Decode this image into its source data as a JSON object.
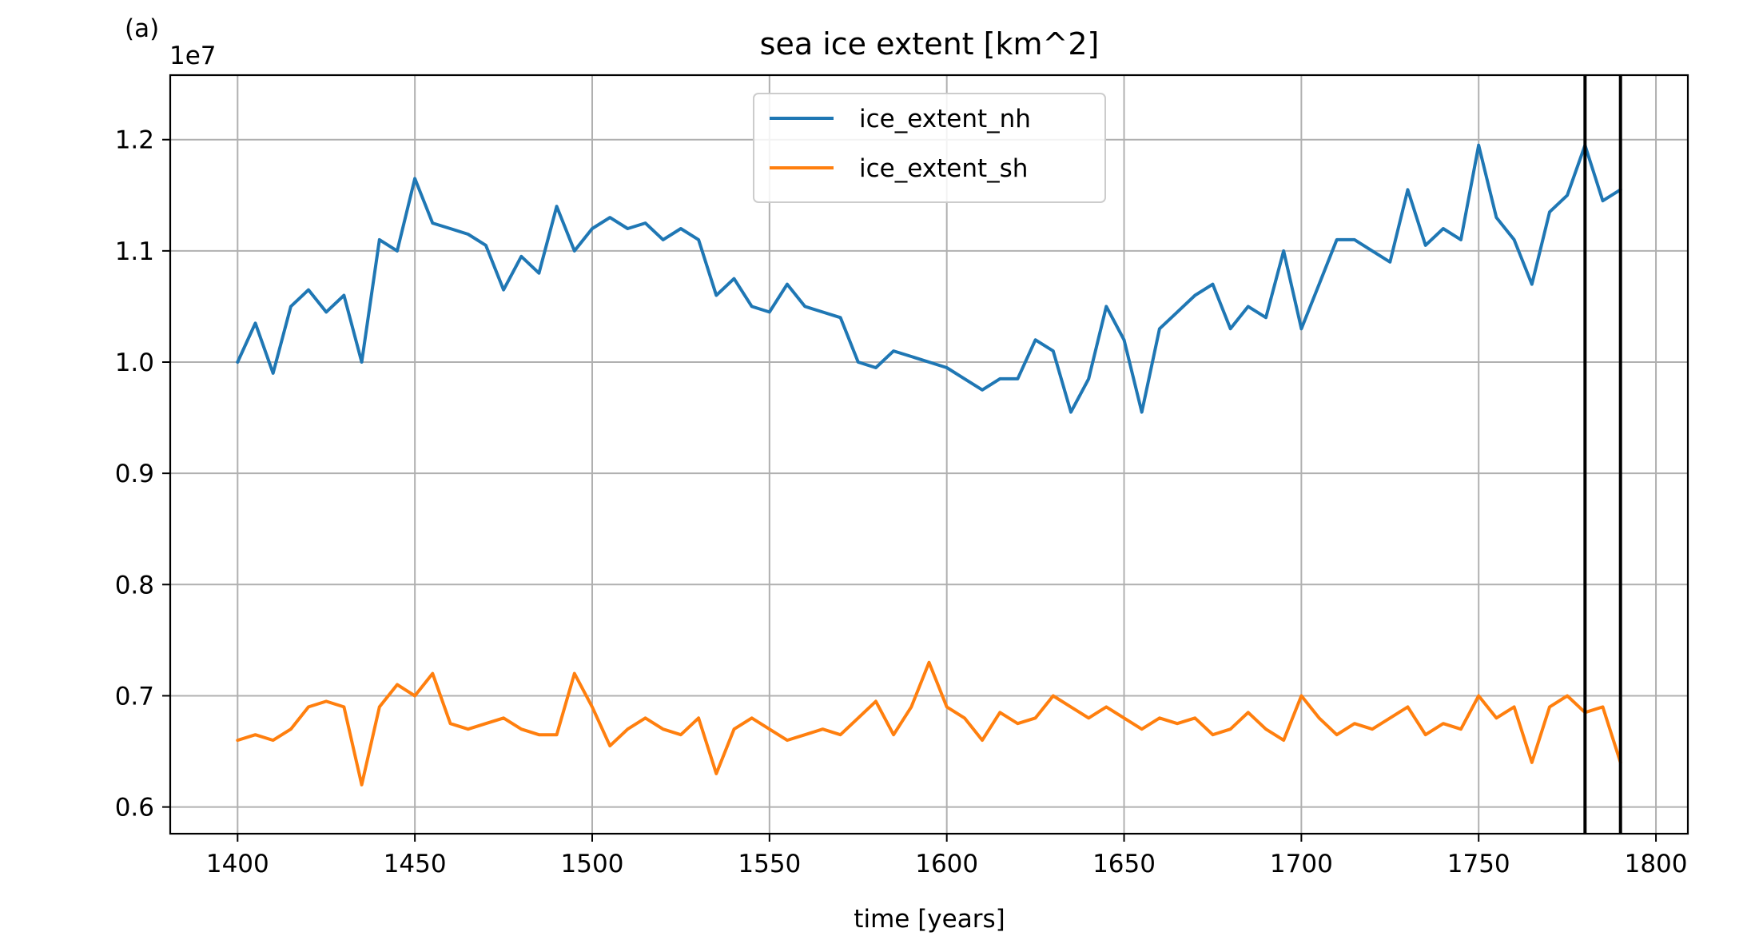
{
  "chart_data": {
    "type": "line",
    "panel_label": "(a)",
    "title": "sea ice extent [km^2]",
    "xlabel": "time [years]",
    "ylabel": "",
    "y_offset_label": "1e7",
    "xlim": [
      1381,
      1809
    ],
    "ylim": [
      0.576,
      1.258
    ],
    "x_ticks": [
      1400,
      1450,
      1500,
      1550,
      1600,
      1650,
      1700,
      1750,
      1800
    ],
    "y_ticks": [
      0.6,
      0.7,
      0.8,
      0.9,
      1.0,
      1.1,
      1.2
    ],
    "x_tick_labels": [
      "1400",
      "1450",
      "1500",
      "1550",
      "1600",
      "1650",
      "1700",
      "1750",
      "1800"
    ],
    "y_tick_labels": [
      "0.6",
      "0.7",
      "0.8",
      "0.9",
      "1.0",
      "1.1",
      "1.2"
    ],
    "grid": true,
    "legend_position": "top-center",
    "vertical_lines": [
      1780,
      1790
    ],
    "vertical_line_color": "#000000",
    "series": [
      {
        "name": "ice_extent_nh",
        "color": "#1f77b4",
        "x": [
          1400,
          1405,
          1410,
          1415,
          1420,
          1425,
          1430,
          1435,
          1440,
          1445,
          1450,
          1455,
          1460,
          1465,
          1470,
          1475,
          1480,
          1485,
          1490,
          1495,
          1500,
          1505,
          1510,
          1515,
          1520,
          1525,
          1530,
          1535,
          1540,
          1545,
          1550,
          1555,
          1560,
          1565,
          1570,
          1575,
          1580,
          1585,
          1590,
          1595,
          1600,
          1605,
          1610,
          1615,
          1620,
          1625,
          1630,
          1635,
          1640,
          1645,
          1650,
          1655,
          1660,
          1665,
          1670,
          1675,
          1680,
          1685,
          1690,
          1695,
          1700,
          1705,
          1710,
          1715,
          1720,
          1725,
          1730,
          1735,
          1740,
          1745,
          1750,
          1755,
          1760,
          1765,
          1770,
          1775,
          1780,
          1785,
          1790
        ],
        "y": [
          1.0,
          1.035,
          0.99,
          1.05,
          1.065,
          1.045,
          1.06,
          1.0,
          1.11,
          1.1,
          1.165,
          1.125,
          1.12,
          1.115,
          1.105,
          1.065,
          1.095,
          1.08,
          1.14,
          1.1,
          1.12,
          1.13,
          1.12,
          1.125,
          1.11,
          1.12,
          1.11,
          1.06,
          1.075,
          1.05,
          1.045,
          1.07,
          1.05,
          1.045,
          1.04,
          1.0,
          0.995,
          1.01,
          1.005,
          1.0,
          0.995,
          0.985,
          0.975,
          0.985,
          0.985,
          1.02,
          1.01,
          0.955,
          0.985,
          1.05,
          1.02,
          0.955,
          1.03,
          1.045,
          1.06,
          1.07,
          1.03,
          1.05,
          1.04,
          1.1,
          1.03,
          1.07,
          1.11,
          1.11,
          1.1,
          1.09,
          1.155,
          1.105,
          1.12,
          1.11,
          1.195,
          1.13,
          1.11,
          1.07,
          1.135,
          1.15,
          1.195,
          1.145,
          1.155
        ]
      },
      {
        "name": "ice_extent_sh",
        "color": "#ff7f0e",
        "x": [
          1400,
          1405,
          1410,
          1415,
          1420,
          1425,
          1430,
          1435,
          1440,
          1445,
          1450,
          1455,
          1460,
          1465,
          1470,
          1475,
          1480,
          1485,
          1490,
          1495,
          1500,
          1505,
          1510,
          1515,
          1520,
          1525,
          1530,
          1535,
          1540,
          1545,
          1550,
          1555,
          1560,
          1565,
          1570,
          1575,
          1580,
          1585,
          1590,
          1595,
          1600,
          1605,
          1610,
          1615,
          1620,
          1625,
          1630,
          1635,
          1640,
          1645,
          1650,
          1655,
          1660,
          1665,
          1670,
          1675,
          1680,
          1685,
          1690,
          1695,
          1700,
          1705,
          1710,
          1715,
          1720,
          1725,
          1730,
          1735,
          1740,
          1745,
          1750,
          1755,
          1760,
          1765,
          1770,
          1775,
          1780,
          1785,
          1790
        ],
        "y": [
          0.66,
          0.665,
          0.66,
          0.67,
          0.69,
          0.695,
          0.69,
          0.62,
          0.69,
          0.71,
          0.7,
          0.72,
          0.675,
          0.67,
          0.675,
          0.68,
          0.67,
          0.665,
          0.665,
          0.72,
          0.69,
          0.655,
          0.67,
          0.68,
          0.67,
          0.665,
          0.68,
          0.63,
          0.67,
          0.68,
          0.67,
          0.66,
          0.665,
          0.67,
          0.665,
          0.68,
          0.695,
          0.665,
          0.69,
          0.73,
          0.69,
          0.68,
          0.66,
          0.685,
          0.675,
          0.68,
          0.7,
          0.69,
          0.68,
          0.69,
          0.68,
          0.67,
          0.68,
          0.675,
          0.68,
          0.665,
          0.67,
          0.685,
          0.67,
          0.66,
          0.7,
          0.68,
          0.665,
          0.675,
          0.67,
          0.68,
          0.69,
          0.665,
          0.675,
          0.67,
          0.7,
          0.68,
          0.69,
          0.64,
          0.69,
          0.7,
          0.685,
          0.69,
          0.64
        ]
      }
    ]
  }
}
